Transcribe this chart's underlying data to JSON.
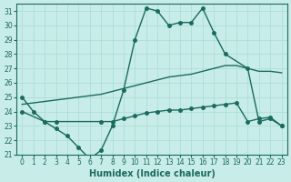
{
  "xlabel": "Humidex (Indice chaleur)",
  "xlim": [
    -0.5,
    23.5
  ],
  "ylim": [
    21,
    31.5
  ],
  "yticks": [
    21,
    22,
    23,
    24,
    25,
    26,
    27,
    28,
    29,
    30,
    31
  ],
  "xticks": [
    0,
    1,
    2,
    3,
    4,
    5,
    6,
    7,
    8,
    9,
    10,
    11,
    12,
    13,
    14,
    15,
    16,
    17,
    18,
    19,
    20,
    21,
    22,
    23
  ],
  "bg_color": "#c8ece8",
  "grid_color": "#a8dcd4",
  "line_color": "#1a6b5e",
  "line1_x": [
    0,
    1,
    2,
    3,
    4,
    5,
    6,
    7,
    8,
    9,
    10,
    11,
    12,
    13,
    14,
    15,
    16,
    17,
    18,
    20,
    21,
    22,
    23
  ],
  "line1_y": [
    25.0,
    24.0,
    23.3,
    22.8,
    22.3,
    21.5,
    20.7,
    21.3,
    23.0,
    25.5,
    29.0,
    31.2,
    31.0,
    30.0,
    30.2,
    30.2,
    31.2,
    29.5,
    28.0,
    27.0,
    23.3,
    23.5,
    23.0
  ],
  "line2_x": [
    0,
    2,
    3,
    7,
    8,
    9,
    10,
    11,
    12,
    13,
    14,
    15,
    16,
    17,
    18,
    19,
    20,
    21,
    22,
    23
  ],
  "line2_y": [
    24.0,
    23.3,
    23.3,
    23.3,
    23.3,
    23.5,
    23.7,
    23.9,
    24.0,
    24.1,
    24.1,
    24.2,
    24.3,
    24.4,
    24.5,
    24.6,
    23.3,
    23.5,
    23.6,
    23.0
  ],
  "line3_x": [
    0,
    1,
    2,
    3,
    4,
    5,
    6,
    7,
    8,
    9,
    10,
    11,
    12,
    13,
    14,
    15,
    16,
    17,
    18,
    19,
    20,
    21,
    22,
    23
  ],
  "line3_y": [
    24.5,
    24.6,
    24.7,
    24.8,
    24.9,
    25.0,
    25.1,
    25.2,
    25.4,
    25.6,
    25.8,
    26.0,
    26.2,
    26.4,
    26.5,
    26.6,
    26.8,
    27.0,
    27.2,
    27.2,
    27.0,
    26.8,
    26.8,
    26.7
  ]
}
